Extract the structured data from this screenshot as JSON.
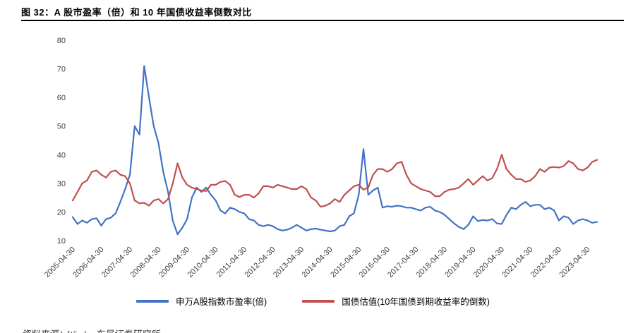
{
  "header": {
    "title": "图 32：A 股市盈率（倍）和 10 年国债收益率倒数对比"
  },
  "footer": {
    "source": "资料来源：Wind，东吴证券研究所"
  },
  "chart_data": {
    "type": "line",
    "title": "",
    "xlabel": "",
    "ylabel": "",
    "grid": false,
    "legend_position": "bottom",
    "ylim": [
      10,
      80
    ],
    "yticks": [
      10,
      20,
      30,
      40,
      50,
      60,
      70,
      80
    ],
    "x_start": "2005-04",
    "x_interval_months": 2,
    "x_tick_step": 6,
    "x_labels": [
      "2005-04-30",
      "2006-04-30",
      "2007-04-30",
      "2008-04-30",
      "2009-04-30",
      "2010-04-30",
      "2011-04-30",
      "2012-04-30",
      "2013-04-30",
      "2014-04-30",
      "2015-04-30",
      "2016-04-30",
      "2017-04-30",
      "2018-04-30",
      "2019-04-30",
      "2020-04-30",
      "2021-04-30",
      "2022-04-30",
      "2023-04-30"
    ],
    "series": [
      {
        "name": "申万A股指数市盈率(倍)",
        "color": "#4472c4",
        "values": [
          18.2,
          15.8,
          17.0,
          16.2,
          17.5,
          17.8,
          15.2,
          17.5,
          18.0,
          19.5,
          23.5,
          28,
          33,
          50,
          47,
          71,
          60,
          50,
          44,
          34,
          27,
          17,
          12.2,
          14.5,
          17.5,
          25,
          28.5,
          27,
          28.5,
          26,
          24,
          20.5,
          19.5,
          21.5,
          21,
          20,
          19.5,
          17.5,
          17,
          15.5,
          15,
          15.5,
          15,
          14,
          13.5,
          13.8,
          14.5,
          15.5,
          14.5,
          13.5,
          14,
          14.2,
          13.8,
          13.5,
          13.2,
          13.5,
          15,
          15.5,
          18.5,
          19.5,
          26,
          42,
          26,
          27.5,
          28.5,
          21.5,
          22,
          21.8,
          22.2,
          22,
          21.5,
          21.5,
          21,
          20.5,
          21.5,
          21.8,
          20.5,
          20,
          19,
          17.5,
          16,
          14.8,
          14,
          15.5,
          18.5,
          16.8,
          17.2,
          17,
          17.5,
          16,
          15.8,
          19,
          21.5,
          21,
          22.5,
          23.5,
          22,
          22.5,
          22.5,
          21,
          21.5,
          20.5,
          17,
          18.5,
          18,
          15.8,
          17,
          17.5,
          17,
          16.2,
          16.5
        ]
      },
      {
        "name": "国债估值(10年国债到期收益率的倒数)",
        "color": "#c0504d",
        "values": [
          24,
          27,
          30,
          31,
          34,
          34.5,
          33,
          32,
          34,
          34.5,
          33,
          32.5,
          30,
          24,
          23,
          23.2,
          22.2,
          24,
          24.5,
          23,
          24.5,
          30,
          37,
          32,
          29.5,
          28.5,
          28,
          27.5,
          27.3,
          29.5,
          29.5,
          30.5,
          30.8,
          29.5,
          26,
          25.2,
          26,
          26,
          25,
          26.5,
          29,
          29,
          28.5,
          29.5,
          29,
          28.5,
          28,
          28,
          29,
          28,
          25,
          24,
          21.8,
          22.2,
          23,
          24.5,
          23.5,
          26,
          27.5,
          29,
          29.5,
          27.8,
          28.5,
          33,
          35,
          35,
          34,
          35,
          37,
          37.5,
          33,
          30,
          29,
          28,
          27.5,
          27,
          25.5,
          25.5,
          27,
          27.8,
          28,
          28.5,
          30,
          31.5,
          29.5,
          31,
          32.5,
          31,
          31.8,
          35,
          40,
          35,
          33,
          31.5,
          31.5,
          30.5,
          31,
          32.5,
          35,
          34,
          35.5,
          35.7,
          35.5,
          36,
          37.8,
          37,
          35,
          34.5,
          35.5,
          37.5,
          38.2
        ]
      }
    ]
  }
}
